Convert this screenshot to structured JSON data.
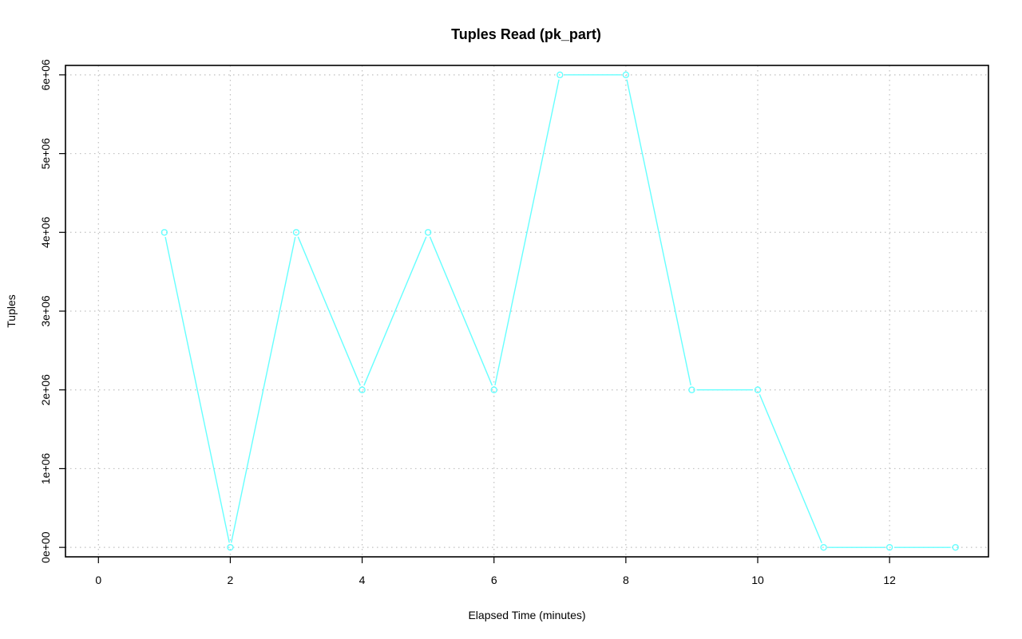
{
  "chart_data": {
    "type": "line",
    "title": "Tuples Read (pk_part)",
    "xlabel": "Elapsed Time (minutes)",
    "ylabel": "Tuples",
    "xlim": [
      -0.5,
      13.5
    ],
    "ylim": [
      -120000,
      6120000
    ],
    "x_ticks": [
      0,
      2,
      4,
      6,
      8,
      10,
      12
    ],
    "x_tick_labels": [
      "0",
      "2",
      "4",
      "6",
      "8",
      "10",
      "12"
    ],
    "y_ticks": [
      0,
      1000000,
      2000000,
      3000000,
      4000000,
      5000000,
      6000000
    ],
    "y_tick_labels": [
      "0e+00",
      "1e+06",
      "2e+06",
      "3e+06",
      "4e+06",
      "5e+06",
      "6e+06"
    ],
    "grid": true,
    "series": [
      {
        "color": "#66ffff",
        "marker": "circle",
        "x": [
          1,
          2,
          3,
          4,
          5,
          6,
          7,
          8,
          9,
          10,
          11,
          12,
          13
        ],
        "y": [
          4000000,
          0,
          4000000,
          2000000,
          4000000,
          2000000,
          6000000,
          6000000,
          2000000,
          2000000,
          0,
          0,
          0
        ]
      }
    ]
  }
}
